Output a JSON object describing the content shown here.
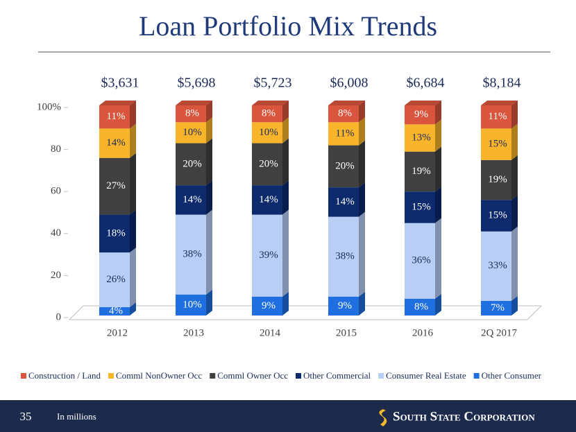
{
  "chart_data": {
    "type": "stacked_bar",
    "title": "Loan Portfolio Mix Trends",
    "categories": [
      "2012",
      "2013",
      "2014",
      "2015",
      "2016",
      "2Q 2017"
    ],
    "series": [
      {
        "name": "Construction / Land",
        "color": "#d9553d",
        "values": [
          11,
          8,
          8,
          8,
          9,
          11
        ],
        "value_labels": [
          "11%",
          "8%",
          "8%",
          "8%",
          "9%",
          "11%"
        ]
      },
      {
        "name": "Comml NonOwner Occ",
        "color": "#f8b42a",
        "values": [
          14,
          10,
          10,
          11,
          13,
          15
        ],
        "value_labels": [
          "14%",
          "10%",
          "10%",
          "11%",
          "13%",
          "15%"
        ]
      },
      {
        "name": "Comml Owner Occ",
        "color": "#404040",
        "values": [
          27,
          20,
          20,
          20,
          19,
          19
        ],
        "value_labels": [
          "27%",
          "20%",
          "20%",
          "20%",
          "19%",
          "19%"
        ]
      },
      {
        "name": "Other Commercial",
        "color": "#0c2a6c",
        "values": [
          18,
          14,
          14,
          14,
          15,
          15
        ],
        "value_labels": [
          "18%",
          "14%",
          "14%",
          "14%",
          "15%",
          "15%"
        ]
      },
      {
        "name": "Consumer Real Estate",
        "color": "#b8cef5",
        "values": [
          26,
          38,
          39,
          38,
          36,
          33
        ],
        "value_labels": [
          "26%",
          "38%",
          "39%",
          "38%",
          "36%",
          "33%"
        ]
      },
      {
        "name": "Other Consumer",
        "color": "#1f6fe0",
        "values": [
          4,
          10,
          9,
          9,
          8,
          7
        ],
        "value_labels": [
          "4%",
          "10%",
          "9%",
          "9%",
          "8%",
          "7%"
        ]
      }
    ],
    "totals": {
      "values": [
        3631,
        5698,
        5723,
        6008,
        6684,
        8184
      ],
      "value_labels": [
        "$3,631",
        "$5,698",
        "$5,723",
        "$6,008",
        "$6,684",
        "$8,184"
      ]
    },
    "ylim": [
      0,
      100
    ],
    "yticks": [
      0,
      20,
      40,
      60,
      80,
      {
        "value": 100,
        "label": "100%"
      }
    ],
    "legend": "bottom"
  },
  "footer": {
    "page_number": "35",
    "note": "In millions",
    "company": "South State Corporation"
  }
}
